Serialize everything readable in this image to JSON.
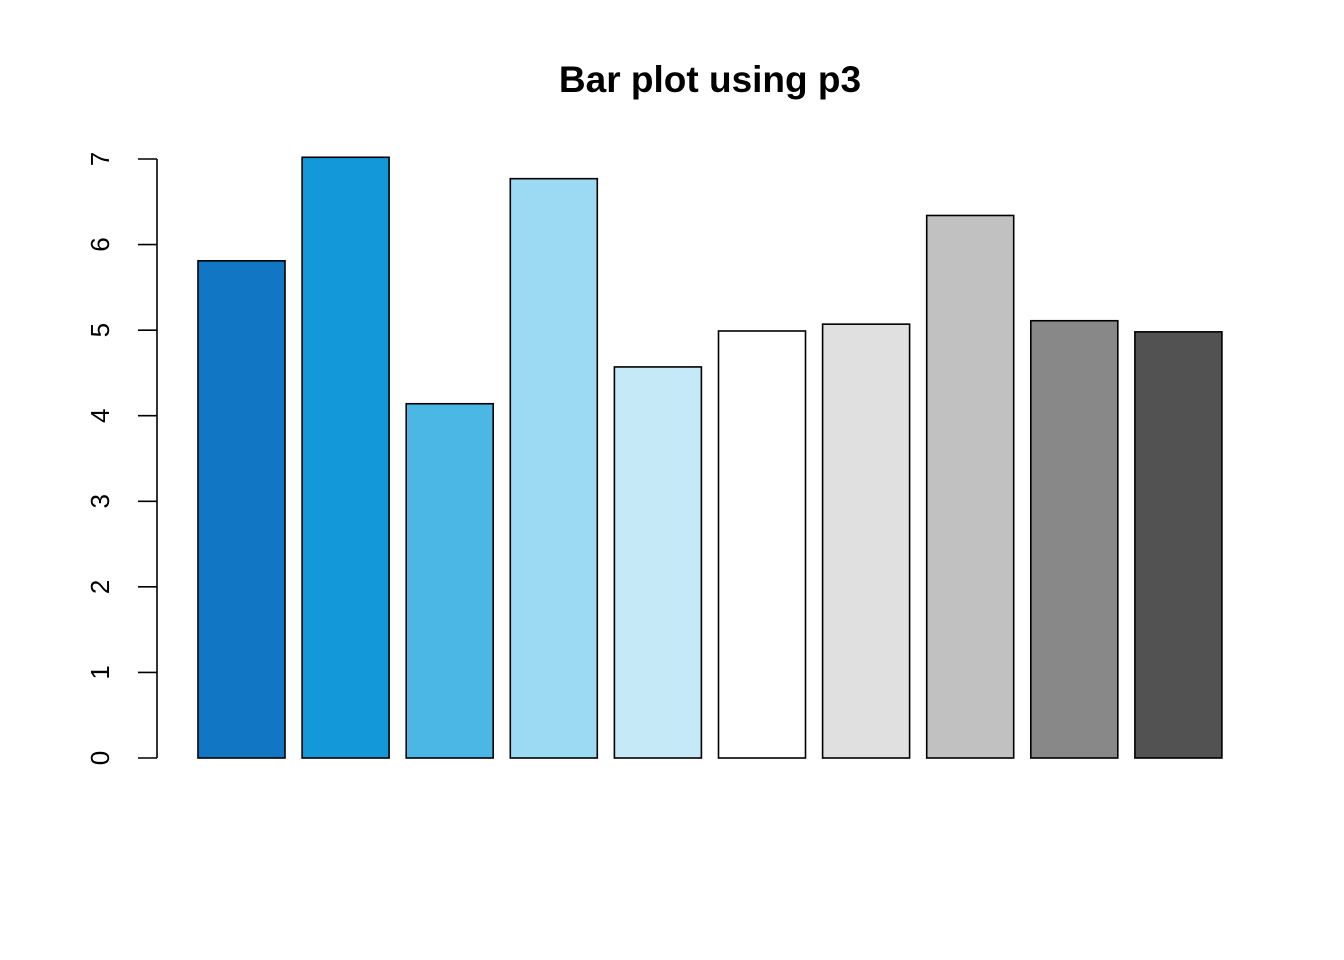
{
  "chart_data": {
    "type": "bar",
    "title": "Bar plot using p3",
    "xlabel": "",
    "ylabel": "",
    "categories": [
      "",
      "",
      "",
      "",
      "",
      "",
      "",
      "",
      "",
      ""
    ],
    "values": [
      5.81,
      7.02,
      4.14,
      6.77,
      4.57,
      4.99,
      5.07,
      6.34,
      5.11,
      4.98
    ],
    "colors": [
      "#1177C4",
      "#1398D9",
      "#4AB7E4",
      "#9BDAF2",
      "#C5E9F6",
      "#FFFFFF",
      "#E0E0E0",
      "#C1C1C1",
      "#888888",
      "#525252"
    ],
    "ylim": [
      0,
      7
    ],
    "yticks": [
      0,
      1,
      2,
      3,
      4,
      5,
      6,
      7
    ],
    "grid": false,
    "legend": "none"
  }
}
